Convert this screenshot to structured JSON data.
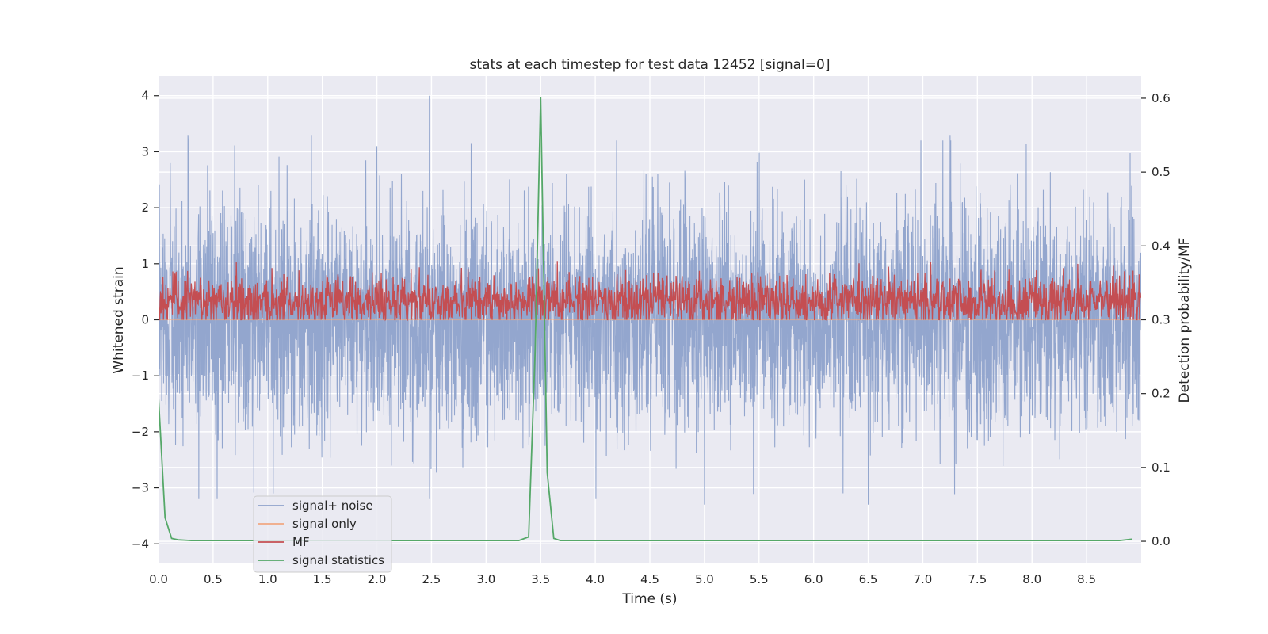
{
  "chart_data": {
    "type": "line",
    "title": "stats at each timestep for test data 12452 [signal=0]",
    "xlabel": "Time (s)",
    "ylabel": "Whitened strain",
    "y2label": "Detection probability/MF",
    "xlim": [
      0.0,
      9.0
    ],
    "ylim": [
      -4.35,
      4.35
    ],
    "y2lim": [
      -0.03,
      0.63
    ],
    "xticks": [
      "0.0",
      "0.5",
      "1.0",
      "1.5",
      "2.0",
      "2.5",
      "3.0",
      "3.5",
      "4.0",
      "4.5",
      "5.0",
      "5.5",
      "6.0",
      "6.5",
      "7.0",
      "7.5",
      "8.0",
      "8.5"
    ],
    "yticks": [
      "4",
      "3",
      "2",
      "1",
      "0",
      "−1",
      "−2",
      "−3",
      "−4"
    ],
    "y2ticks": [
      "0.6",
      "0.5",
      "0.4",
      "0.3",
      "0.2",
      "0.1",
      "0.0"
    ],
    "grid": true,
    "legend_position": "lower-left",
    "series": [
      {
        "name": "signal+ noise",
        "axis": "left",
        "color": "#8ea2cb",
        "kind": "noise",
        "sample_rate_hz": 2048,
        "peak_abs": 4.0,
        "highlights": [
          {
            "x": 0.27,
            "y": 3.3
          },
          {
            "x": 0.37,
            "y": -3.2
          },
          {
            "x": 1.4,
            "y": 3.3
          },
          {
            "x": 2.0,
            "y": 3.1
          },
          {
            "x": 2.48,
            "y": 4.0
          },
          {
            "x": 5.0,
            "y": -3.3
          },
          {
            "x": 6.5,
            "y": -3.3
          },
          {
            "x": 7.25,
            "y": 3.3
          },
          {
            "x": 1.05,
            "y": -3.1
          }
        ]
      },
      {
        "name": "signal only",
        "axis": "left",
        "color": "#f0a782",
        "values": []
      },
      {
        "name": "MF",
        "axis": "right",
        "color": "#c44e52",
        "kind": "noise",
        "baseline": 0.325,
        "spread": 0.018,
        "max": 0.38,
        "min": 0.3
      },
      {
        "name": "signal statistics",
        "axis": "right",
        "color": "#55a868",
        "x": [
          0.0,
          0.06,
          0.12,
          0.18,
          0.24,
          0.3,
          0.5,
          0.7,
          1.0,
          1.5,
          2.0,
          2.5,
          3.0,
          3.3,
          3.39,
          3.45,
          3.5,
          3.56,
          3.62,
          3.68,
          3.75,
          4.0,
          5.0,
          6.0,
          7.0,
          8.0,
          8.6,
          8.8,
          8.92
        ],
        "y": [
          0.195,
          0.032,
          0.004,
          0.002,
          0.0015,
          0.001,
          0.001,
          0.001,
          0.001,
          0.001,
          0.001,
          0.001,
          0.001,
          0.001,
          0.006,
          0.26,
          0.602,
          0.093,
          0.004,
          0.001,
          0.001,
          0.001,
          0.001,
          0.001,
          0.001,
          0.001,
          0.001,
          0.001,
          0.003
        ]
      }
    ]
  }
}
